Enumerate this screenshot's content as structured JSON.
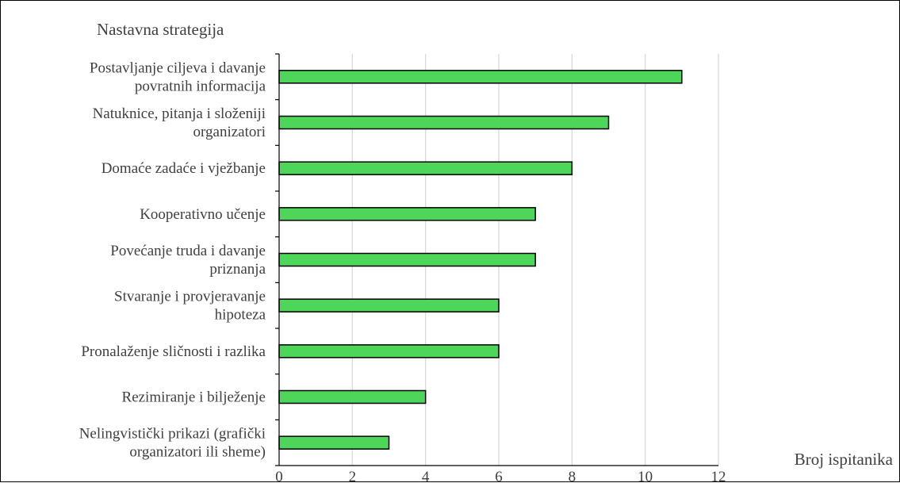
{
  "chart_data": {
    "type": "bar",
    "orientation": "horizontal",
    "y_axis_title": "Nastavna strategija",
    "x_axis_title": "Broj ispitanika",
    "categories": [
      [
        "Postavljanje ciljeva i davanje",
        "povratnih informacija"
      ],
      [
        "Natuknice, pitanja i složeniji",
        "organizatori"
      ],
      [
        "Domaće zadaće i vježbanje"
      ],
      [
        "Kooperativno učenje"
      ],
      [
        "Povećanje truda i davanje",
        "priznanja"
      ],
      [
        "Stvaranje i provjeravanje",
        "hipoteza"
      ],
      [
        "Pronalaženje sličnosti i razlika"
      ],
      [
        "Rezimiranje i bilježenje"
      ],
      [
        "Nelingvistički prikazi (grafički",
        "organizatori ili sheme)"
      ]
    ],
    "values": [
      11,
      9,
      8,
      7,
      7,
      6,
      6,
      4,
      3
    ],
    "xlim": [
      0,
      12
    ],
    "x_ticks": [
      "0",
      "2",
      "4",
      "6",
      "8",
      "10",
      "12"
    ],
    "x_tick_values": [
      0,
      2,
      4,
      6,
      8,
      10,
      12
    ],
    "grid": "vertical",
    "legend": "none",
    "colors": {
      "bar_fill": "#4ed65a",
      "bar_stroke": "#000000",
      "grid": "#d9d9d9",
      "axis": "#000000",
      "text": "#404040"
    }
  }
}
